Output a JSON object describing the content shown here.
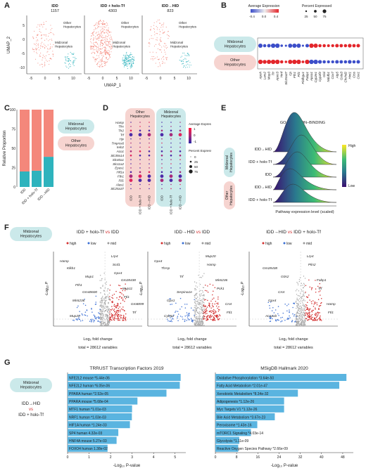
{
  "panels": {
    "A": {
      "label": "A",
      "groups": [
        {
          "name": "IDD",
          "count": "1157"
        },
        {
          "name": "IDD + holo-Tf",
          "count": "4303"
        },
        {
          "name": "IDD→HID",
          "count": "823"
        }
      ],
      "cluster_other": "Other\nHepatocytes",
      "cluster_mid": "Midzonal\nHepatocytes",
      "xlabel": "UMAP_1",
      "ylabel": "UMAP_2",
      "xticks": [
        "-5",
        "0",
        "5",
        "10"
      ],
      "yticks": [
        "5",
        "0",
        "-5",
        "-10"
      ]
    },
    "B": {
      "label": "B",
      "legend_avg_title": "Average Expression",
      "legend_avg_ticks": [
        "-0.4",
        "0.0",
        "0.4"
      ],
      "legend_pct_title": "Percent Expressed",
      "legend_pct_ticks": [
        "25",
        "50",
        "75"
      ],
      "row_mid": "Midzonal\nHepatocytes",
      "row_other": "Other\nHepatocytes",
      "genes": [
        "Apoh",
        "Lars2",
        "Mup3",
        "Ttr",
        "Apoc3",
        "Hmf",
        "Slc25a37",
        "Cp",
        "Fth1",
        "Ftl1",
        "Flafhgu1",
        "Fabp1",
        "Apoa1",
        "Cyp2e1",
        "Cyp2f2",
        "Glul",
        "Ndufb1",
        "Cox7",
        "Atp5",
        "Gsta3",
        "Chchd2",
        "Hint1",
        "Ctss",
        "Cox1"
      ],
      "chart_data": {
        "type": "dotplot",
        "rows": [
          "Midzonal Hepatocytes",
          "Other Hepatocytes"
        ],
        "mid_levels": [
          -0.4,
          -0.4,
          -0.4,
          -0.4,
          -0.4,
          -0.4,
          -0.4,
          -0.4,
          -0.4,
          -0.4,
          -0.4,
          -0.4,
          0.4,
          0.4,
          0.4,
          0.4,
          0.4,
          0.4,
          0.4,
          0.4,
          0.4,
          0.4,
          0.4,
          0.4
        ],
        "other_levels": [
          0.4,
          0.4,
          0.4,
          0.4,
          0.4,
          0.4,
          0.4,
          0.4,
          0.4,
          0.4,
          0.4,
          0.4,
          -0.4,
          -0.4,
          -0.4,
          -0.4,
          -0.4,
          -0.4,
          -0.4,
          -0.4,
          -0.4,
          -0.4,
          -0.4,
          -0.4
        ],
        "pct_mid": [
          90,
          60,
          70,
          95,
          95,
          40,
          30,
          85,
          90,
          90,
          30,
          70,
          95,
          90,
          60,
          60,
          50,
          55,
          70,
          65,
          60,
          75,
          65,
          70
        ],
        "pct_other": [
          95,
          80,
          90,
          95,
          95,
          60,
          40,
          90,
          95,
          95,
          45,
          95,
          95,
          95,
          75,
          60,
          55,
          55,
          70,
          65,
          60,
          75,
          60,
          70
        ]
      }
    },
    "C": {
      "label": "C",
      "ylabel": "Relative Proportion",
      "yticks": [
        "100",
        "75",
        "50",
        "25",
        "0"
      ],
      "legend_mid": "Midzonal\nHepatocytes",
      "legend_other": "Other\nHepatocytes",
      "chart_data": {
        "type": "bar",
        "categories": [
          "IDD",
          "IDD + holo-Tf",
          "IDD→HID"
        ],
        "series": [
          {
            "name": "Midzonal Hepatocytes",
            "values": [
              20,
              21,
              39
            ]
          },
          {
            "name": "Other Hepatocytes",
            "values": [
              80,
              79,
              61
            ]
          }
        ],
        "ylim": [
          0,
          100
        ]
      }
    },
    "D": {
      "label": "D",
      "header_other": "Other\nHepatocytes",
      "header_mid": "Midzonal\nHepatocytes",
      "genes": [
        "Hamp",
        "Tfrc",
        "Tfr2",
        "Trf",
        "Hjv",
        "Tmprss6",
        "Ireb2",
        "Aco1",
        "Slc39a14",
        "Slc40a1",
        "Slc11a2",
        "Epas1",
        "Hif1a",
        "Fth1",
        "Ftl1",
        "Alas1",
        "Slc25a37"
      ],
      "columns": [
        "IDD",
        "IDD + holo-Tf",
        "IDD→HID",
        "IDD",
        "IDD + holo-Tf",
        "IDD→HID"
      ],
      "legend_avg_title": "Average Expression",
      "legend_avg_ticks": [
        "1",
        "0",
        "-1"
      ],
      "legend_pct_title": "Percent Expressed",
      "legend_pct_ticks": [
        "0",
        "25",
        "50",
        "75"
      ]
    },
    "E": {
      "label": "E",
      "title": "GO–IRON–ION–BINDING",
      "rows": [
        "IDD→HID",
        "IDD + holo-Tf",
        "IDD",
        "IDD→HID",
        "IDD + holo-Tf"
      ],
      "side_mid": "Midzonal\nHepatocytes",
      "side_other": "Other\nHepatocytes",
      "xlabel": "Pathway expression level (scaled)",
      "legend_high": "High",
      "legend_low": "Low"
    },
    "F": {
      "label": "F",
      "badge": "Midzonal\nHepatocytes",
      "plots": [
        {
          "title_a": "IDD + holo-Tf",
          "vs": "vs",
          "title_b": "IDD",
          "genes": [
            "Lrp4",
            "Klkb1",
            "Gm28438",
            "Gm48600",
            "Gm8899",
            "Mup20",
            "Scd1",
            "Mup1",
            "Mup11",
            "Mir6236",
            "Trf",
            "Hamp",
            "Gpx4",
            "Fth1",
            "Ftl1"
          ]
        },
        {
          "title_a": "IDD→HID",
          "vs": "vs",
          "title_b": "IDD",
          "genes": [
            "Mup20",
            "Thrsp",
            "Mir6236",
            "Serpina1e",
            "Crot",
            "Cyb5a",
            "Hamp",
            "Trf",
            "Pck1",
            "Gpx1",
            "Ftl1",
            "Gpx4"
          ]
        },
        {
          "title_a": "IDD→HID",
          "vs": "vs",
          "title_b": "IDD + holo-Tf",
          "genes": [
            "Lrp4",
            "Gm28438",
            "Fabp1",
            "Crot",
            "Hamp",
            "Acaa1b",
            "Plin2",
            "G0s2",
            "Trf",
            "Gpx4",
            "Ftl1"
          ]
        }
      ],
      "legend": [
        "high",
        "low",
        "mid"
      ],
      "xlabel": "Log₂ fold change",
      "ylabel": "-Log₁₀ P",
      "total": "total = 28612 variables"
    },
    "G": {
      "label": "G",
      "badge": "Midzonal\nHepatocytes",
      "cmp_a": "IDD→HID",
      "cmp_vs": "vs",
      "cmp_b": "IDD + holo-Tf",
      "xlabel": "-Log₁₀ P-value",
      "left": {
        "title": "TRRUST Transcription Factors 2019",
        "xticks": [
          "0",
          "1",
          "2",
          "3",
          "4",
          "5"
        ],
        "chart_data": {
          "type": "bar",
          "categories": [
            "NFE2L2 mouse *5.44e-06",
            "NFE2L2 human *6.05e-06",
            "PPARA human *2.52e-05",
            "PPARA mouse *5.68e-04",
            "MTF1 human *1.01e-03",
            "NRF1 human *1.03e-03",
            "HIF1A human *1.24e-03",
            "SP4 human 4.32e-03",
            "HNF4A mouse 5.27e-03",
            "FOXO4 human 1.38e-02"
          ],
          "values": [
            5.26,
            5.22,
            4.6,
            3.25,
            3.0,
            2.99,
            2.9,
            2.36,
            2.28,
            1.86
          ],
          "xlim": [
            0,
            5.5
          ]
        }
      },
      "right": {
        "title": "MSigDB Hallmark 2020",
        "xticks": [
          "0",
          "8",
          "16",
          "24",
          "32",
          "40",
          "48"
        ],
        "chart_data": {
          "type": "bar",
          "categories": [
            "Oxidative Phosphorylation *3.64e-50",
            "Fatty Acid Metabolism *2.01e-47",
            "Xenobiotic Metabolism *8.34e-32",
            "Adipogenesis *1.12e-26",
            "Myc Targets V1 *1.12e-26",
            "Bile Acid Metabolism *3.67e-23",
            "Peroxisome *1.43e-16",
            "mTORC1 Signaling *4.03e-14",
            "Glycolysis *1.11e-09",
            "Reactive Oxygen Species Pathway *2.66e-09"
          ],
          "values": [
            49.4,
            46.7,
            31.1,
            25.9,
            25.9,
            22.4,
            15.8,
            13.4,
            9.0,
            8.6
          ],
          "xlim": [
            0,
            52
          ]
        }
      }
    }
  },
  "colors": {
    "salmon": "#f4877b",
    "teal": "#2eb3bd",
    "bar_blue": "#5ab4e0",
    "pill_teal": "#cbe9ea",
    "pill_pink": "#f6d4d0"
  }
}
